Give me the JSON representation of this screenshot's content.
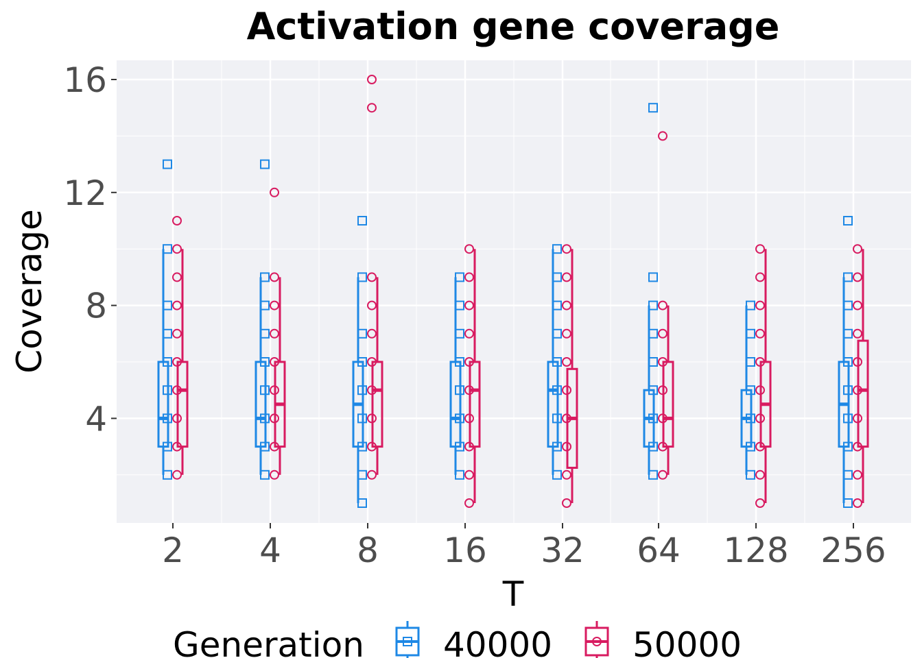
{
  "chart_data": {
    "type": "box",
    "title": "Activation gene coverage",
    "xlabel": "T",
    "ylabel": "Coverage",
    "categories": [
      "2",
      "4",
      "8",
      "16",
      "32",
      "64",
      "128",
      "256"
    ],
    "yticks": [
      4,
      8,
      12,
      16
    ],
    "ylim": [
      0.3,
      16.7
    ],
    "grid": true,
    "legend": {
      "title": "Generation",
      "position": "bottom"
    },
    "series": [
      {
        "name": "40000",
        "color": "#1e88e5",
        "marker": "square",
        "boxes": [
          {
            "whisker_low": 2,
            "q1": 3,
            "median": 4,
            "q3": 6,
            "whisker_high": 10
          },
          {
            "whisker_low": 2,
            "q1": 3,
            "median": 4,
            "q3": 6,
            "whisker_high": 9
          },
          {
            "whisker_low": 1,
            "q1": 3,
            "median": 4.5,
            "q3": 6,
            "whisker_high": 9
          },
          {
            "whisker_low": 2,
            "q1": 3,
            "median": 4,
            "q3": 6,
            "whisker_high": 9
          },
          {
            "whisker_low": 2,
            "q1": 3,
            "median": 5,
            "q3": 6,
            "whisker_high": 10
          },
          {
            "whisker_low": 2,
            "q1": 3,
            "median": 4,
            "q3": 5,
            "whisker_high": 8
          },
          {
            "whisker_low": 2,
            "q1": 3,
            "median": 4,
            "q3": 5,
            "whisker_high": 8
          },
          {
            "whisker_low": 1,
            "q1": 3,
            "median": 4.5,
            "q3": 6,
            "whisker_high": 9
          }
        ],
        "points": [
          [
            2,
            3,
            4,
            5,
            6,
            7,
            8,
            10,
            13
          ],
          [
            2,
            3,
            4,
            5,
            6,
            7,
            8,
            9,
            13
          ],
          [
            1,
            2,
            3,
            4,
            5,
            6,
            7,
            9,
            11
          ],
          [
            2,
            3,
            4,
            5,
            6,
            7,
            8,
            9
          ],
          [
            2,
            3,
            4,
            5,
            6,
            7,
            8,
            9,
            10
          ],
          [
            2,
            3,
            4,
            5,
            6,
            7,
            8,
            9,
            15
          ],
          [
            2,
            3,
            4,
            5,
            6,
            7,
            8
          ],
          [
            1,
            2,
            3,
            4,
            5,
            6,
            7,
            8,
            9,
            11
          ]
        ]
      },
      {
        "name": "50000",
        "color": "#d81b60",
        "marker": "circle",
        "boxes": [
          {
            "whisker_low": 2,
            "q1": 3,
            "median": 5,
            "q3": 6,
            "whisker_high": 10
          },
          {
            "whisker_low": 2,
            "q1": 3,
            "median": 4.5,
            "q3": 6,
            "whisker_high": 9
          },
          {
            "whisker_low": 2,
            "q1": 3,
            "median": 5,
            "q3": 6,
            "whisker_high": 9
          },
          {
            "whisker_low": 1,
            "q1": 3,
            "median": 5,
            "q3": 6,
            "whisker_high": 10
          },
          {
            "whisker_low": 1,
            "q1": 2.25,
            "median": 4,
            "q3": 5.75,
            "whisker_high": 10
          },
          {
            "whisker_low": 2,
            "q1": 3,
            "median": 4,
            "q3": 6,
            "whisker_high": 8
          },
          {
            "whisker_low": 1,
            "q1": 3,
            "median": 4.5,
            "q3": 6,
            "whisker_high": 10
          },
          {
            "whisker_low": 1,
            "q1": 3,
            "median": 5,
            "q3": 6.75,
            "whisker_high": 10
          }
        ],
        "points": [
          [
            2,
            3,
            4,
            5,
            6,
            7,
            8,
            9,
            10,
            11
          ],
          [
            2,
            3,
            4,
            5,
            6,
            7,
            8,
            9,
            12
          ],
          [
            2,
            3,
            4,
            5,
            6,
            7,
            8,
            9,
            15,
            16
          ],
          [
            1,
            2,
            3,
            4,
            5,
            6,
            7,
            8,
            9,
            10
          ],
          [
            1,
            2,
            3,
            4,
            5,
            6,
            7,
            8,
            9,
            10
          ],
          [
            2,
            3,
            4,
            5,
            6,
            7,
            8,
            14
          ],
          [
            1,
            2,
            3,
            4,
            5,
            6,
            7,
            8,
            9,
            10
          ],
          [
            1,
            2,
            3,
            4,
            5,
            6,
            7,
            8,
            9,
            10
          ]
        ]
      }
    ]
  }
}
